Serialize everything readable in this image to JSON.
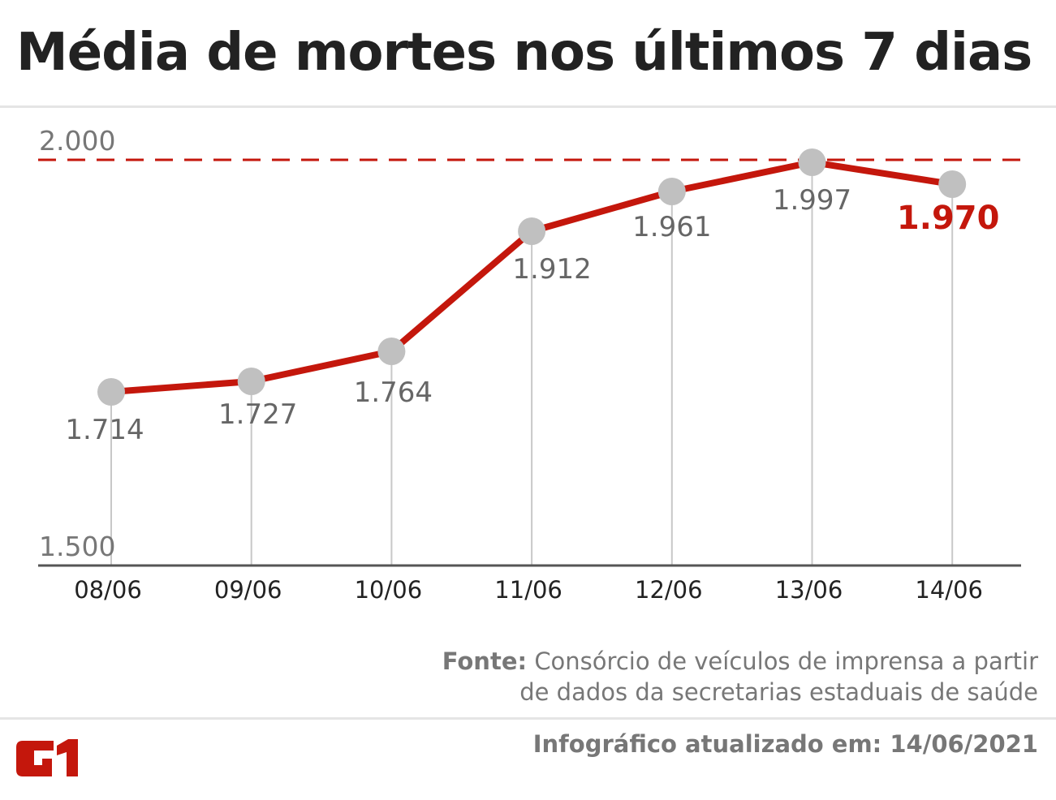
{
  "title": "Média de mortes nos últimos 7 dias",
  "chart_data": {
    "type": "line",
    "categories": [
      "08/06",
      "09/06",
      "10/06",
      "11/06",
      "12/06",
      "13/06",
      "14/06"
    ],
    "values": [
      1714,
      1727,
      1764,
      1912,
      1961,
      1997,
      1970
    ],
    "value_labels": [
      "1.714",
      "1.727",
      "1.764",
      "1.912",
      "1.961",
      "1.997",
      "1.970"
    ],
    "ylim": [
      1500,
      2000
    ],
    "yticks": [
      {
        "value": 2000,
        "label": "2.000"
      },
      {
        "value": 1500,
        "label": "1.500"
      }
    ],
    "reference_line": 2000,
    "colors": {
      "line": "#c4170c",
      "marker": "#c0c0c0",
      "highlight": "#c4170c",
      "label": "#666666"
    }
  },
  "source": {
    "prefix": "Fonte:",
    "line1": "Consórcio de veículos de imprensa a partir",
    "line2": "de dados da secretarias estaduais de saúde"
  },
  "updated": "Infográfico atualizado em: 14/06/2021",
  "logo": "G1"
}
